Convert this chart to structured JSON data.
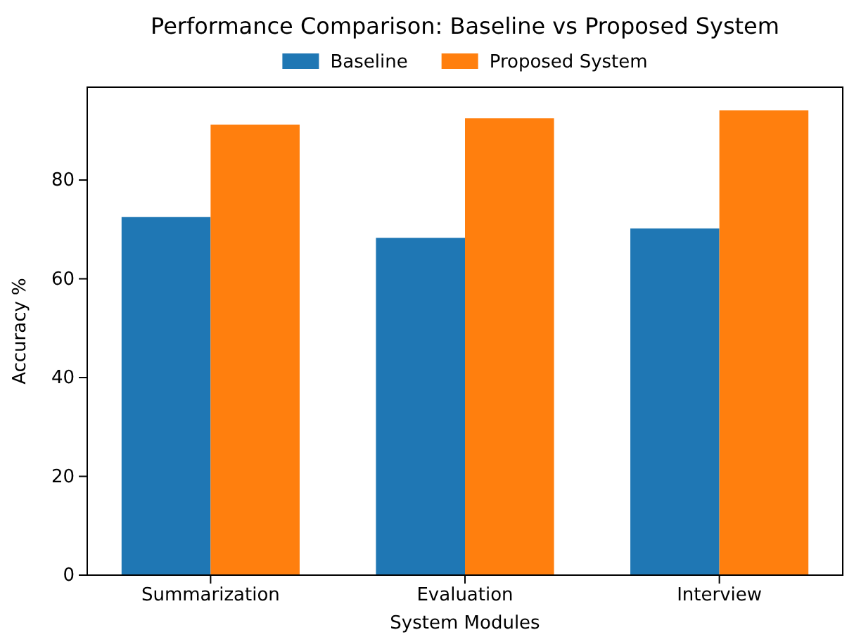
{
  "chart_data": {
    "type": "bar",
    "title": "Performance Comparison: Baseline vs Proposed System",
    "xlabel": "System Modules",
    "ylabel": "Accuracy %",
    "categories": [
      "Summarization",
      "Evaluation",
      "Interview"
    ],
    "series": [
      {
        "name": "Baseline",
        "color": "#1f77b4",
        "values": [
          72.5,
          68.3,
          70.2
        ]
      },
      {
        "name": "Proposed System",
        "color": "#ff7f0e",
        "values": [
          91.2,
          92.5,
          94.1
        ]
      }
    ],
    "ylim": [
      0,
      98.8
    ],
    "yticks": [
      0,
      20,
      40,
      60,
      80
    ],
    "legend": "top",
    "grid": false
  }
}
